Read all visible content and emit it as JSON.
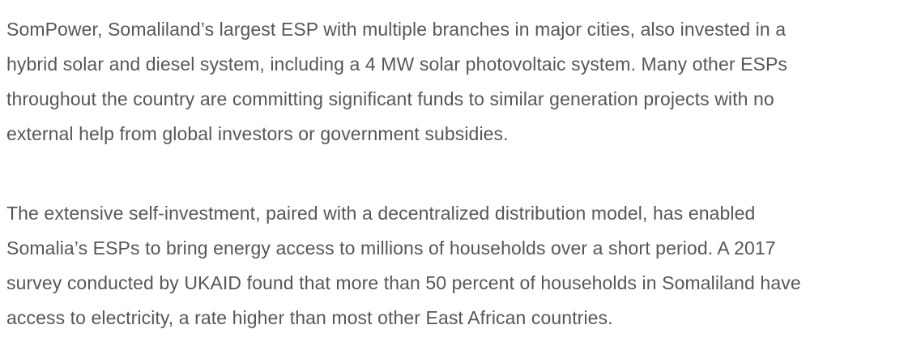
{
  "colors": {
    "background": "#ffffff",
    "text": "#54575c"
  },
  "content": {
    "paragraphs": [
      {
        "lines": [
          "SomPower, Somaliland’s largest ESP with multiple branches in major cities, also invested in a",
          "hybrid solar and diesel system, including a 4 MW solar photovoltaic system. Many other ESPs",
          "throughout the country are committing significant funds to similar generation projects with no",
          "external help from global investors or government subsidies."
        ],
        "full_text": "SomPower, Somaliland’s largest ESP with multiple branches in major cities, also invested in a hybrid solar and diesel system, including a 4 MW solar photovoltaic system. Many other ESPs throughout the country are committing significant funds to similar generation projects with no external help from global investors or government subsidies."
      },
      {
        "lines": [
          "The extensive self-investment, paired with a decentralized distribution model, has enabled",
          "Somalia’s ESPs to bring energy access to millions of households over a short period. A 2017",
          "survey conducted by UKAID found that more than 50 percent of households in Somaliland have",
          "access to electricity, a rate higher than most other East African countries."
        ],
        "full_text": "The extensive self-investment, paired with a decentralized distribution model, has enabled Somalia’s ESPs to bring energy access to millions of households over a short period. A 2017 survey conducted by UKAID found that more than 50 percent of households in Somaliland have access to electricity, a rate higher than most other East African countries."
      }
    ]
  }
}
